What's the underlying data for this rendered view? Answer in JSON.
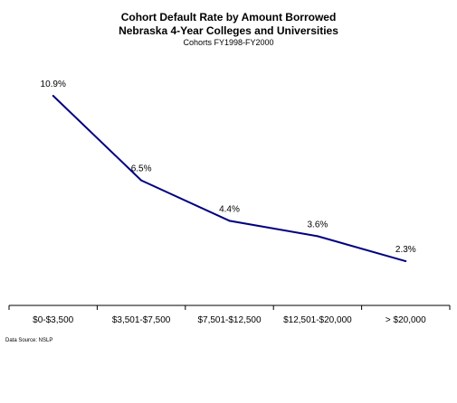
{
  "chart_data": {
    "type": "line",
    "title": "Cohort Default Rate by Amount Borrowed",
    "subtitle": "Nebraska 4-Year Colleges and Universities",
    "note": "Cohorts FY1998-FY2000",
    "source": "Data Source: NSLP",
    "categories": [
      "$0-$3,500",
      "$3,501-$7,500",
      "$7,501-$12,500",
      "$12,501-$20,000",
      "> $20,000"
    ],
    "series": [
      {
        "values": [
          10.9,
          6.5,
          4.4,
          3.6,
          2.3
        ],
        "labels": [
          "10.9%",
          "6.5%",
          "4.4%",
          "3.6%",
          "2.3%"
        ]
      }
    ],
    "xlabel": "",
    "ylabel": "",
    "ylim": [
      0,
      14
    ],
    "grid": false,
    "colors": {
      "line": "#000080",
      "axis": "#000000"
    }
  }
}
